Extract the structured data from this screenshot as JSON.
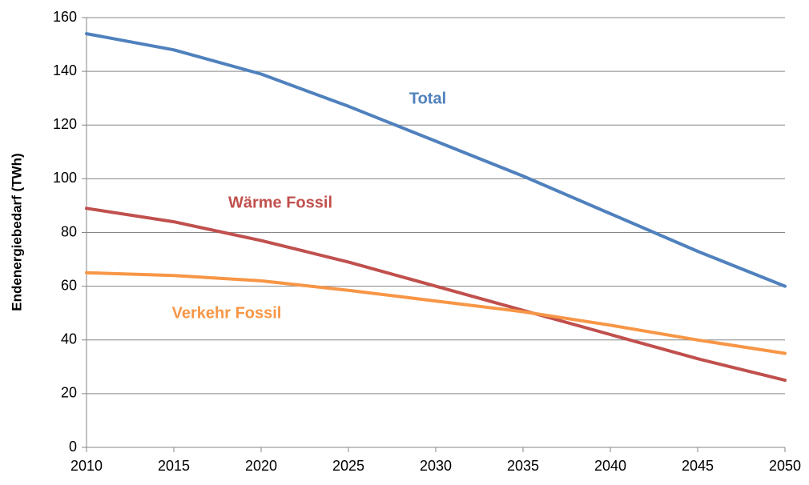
{
  "chart_data": {
    "type": "line",
    "y_label": "Endenergiebedarf (TWh)",
    "x": [
      2010,
      2015,
      2020,
      2025,
      2030,
      2035,
      2040,
      2045,
      2050
    ],
    "series": [
      {
        "name": "Total",
        "color": "#4f81bd",
        "values": [
          154,
          148,
          139,
          127,
          114,
          101,
          87,
          73,
          60
        ]
      },
      {
        "name": "Wärme Fossil",
        "color": "#c0504d",
        "values": [
          89,
          84,
          77,
          69,
          60,
          51,
          42,
          33,
          25
        ]
      },
      {
        "name": "Verkehr Fossil",
        "color": "#f79646",
        "values": [
          65,
          64,
          62,
          58.5,
          54.5,
          50.5,
          45.5,
          40,
          35
        ]
      }
    ],
    "xlim": [
      2010,
      2050
    ],
    "xticks": [
      2010,
      2015,
      2020,
      2025,
      2030,
      2035,
      2040,
      2045,
      2050
    ],
    "ylim": [
      0,
      160
    ],
    "yticks": [
      0,
      20,
      40,
      60,
      80,
      100,
      120,
      140,
      160
    ],
    "grid": true
  }
}
